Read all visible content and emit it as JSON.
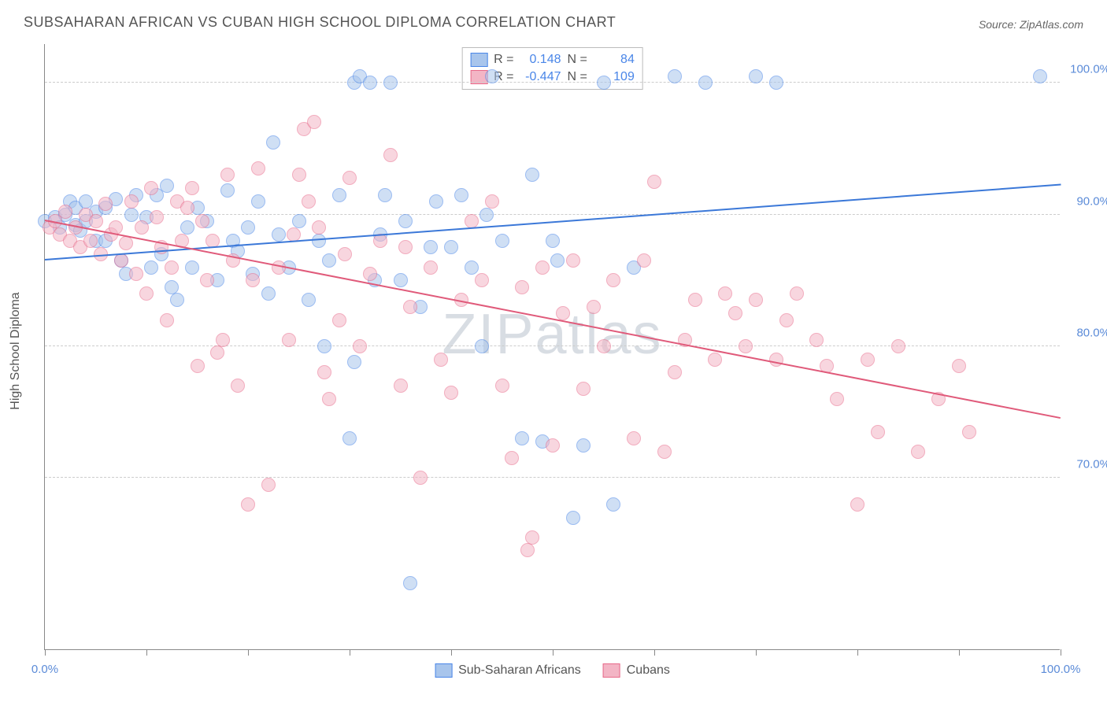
{
  "title": "SUBSAHARAN AFRICAN VS CUBAN HIGH SCHOOL DIPLOMA CORRELATION CHART",
  "source": "Source: ZipAtlas.com",
  "ylabel": "High School Diploma",
  "watermark": "ZIPatlas",
  "chart": {
    "type": "scatter",
    "xlim": [
      0,
      100
    ],
    "ylim": [
      57,
      103
    ],
    "yticks": [
      70,
      80,
      90,
      100
    ],
    "ytick_labels": [
      "70.0%",
      "80.0%",
      "90.0%",
      "100.0%"
    ],
    "xticks": [
      0,
      10,
      20,
      30,
      40,
      50,
      60,
      70,
      80,
      90,
      100
    ],
    "xtick_labels_shown": {
      "0": "0.0%",
      "100": "100.0%"
    },
    "grid_color": "#cccccc",
    "axis_color": "#888888",
    "background_color": "#ffffff",
    "marker_radius": 9,
    "marker_opacity": 0.55,
    "series": [
      {
        "name": "Sub-Saharan Africans",
        "stroke": "#4a86e8",
        "fill": "#a8c5ec",
        "R": "0.148",
        "N": "84",
        "trend": {
          "x1": 0,
          "y1": 86.5,
          "x2": 100,
          "y2": 92.2,
          "color": "#3b78d8",
          "width": 2
        },
        "points": [
          [
            0,
            89.5
          ],
          [
            1,
            89.8
          ],
          [
            1.5,
            89
          ],
          [
            2,
            90
          ],
          [
            2.5,
            91
          ],
          [
            3,
            89.2
          ],
          [
            3,
            90.5
          ],
          [
            3.5,
            88.8
          ],
          [
            4,
            89.5
          ],
          [
            4,
            91
          ],
          [
            5,
            88
          ],
          [
            5,
            90.2
          ],
          [
            6,
            90.5
          ],
          [
            6,
            88
          ],
          [
            7,
            91.2
          ],
          [
            7.5,
            86.5
          ],
          [
            8,
            85.5
          ],
          [
            8.5,
            90
          ],
          [
            9,
            91.5
          ],
          [
            10,
            89.8
          ],
          [
            10.5,
            86
          ],
          [
            11,
            91.5
          ],
          [
            11.5,
            87
          ],
          [
            12,
            92.2
          ],
          [
            12.5,
            84.5
          ],
          [
            13,
            83.5
          ],
          [
            14,
            89
          ],
          [
            14.5,
            86
          ],
          [
            15,
            90.5
          ],
          [
            16,
            89.5
          ],
          [
            17,
            85
          ],
          [
            18,
            91.8
          ],
          [
            18.5,
            88
          ],
          [
            19,
            87.2
          ],
          [
            20,
            89
          ],
          [
            20.5,
            85.5
          ],
          [
            21,
            91
          ],
          [
            22,
            84
          ],
          [
            22.5,
            95.5
          ],
          [
            23,
            88.5
          ],
          [
            24,
            86
          ],
          [
            25,
            89.5
          ],
          [
            26,
            83.5
          ],
          [
            27,
            88
          ],
          [
            27.5,
            80
          ],
          [
            28,
            86.5
          ],
          [
            29,
            91.5
          ],
          [
            30,
            73
          ],
          [
            30.5,
            100
          ],
          [
            30.5,
            78.8
          ],
          [
            31,
            100.5
          ],
          [
            32,
            100
          ],
          [
            32.5,
            85
          ],
          [
            33,
            88.5
          ],
          [
            33.5,
            91.5
          ],
          [
            34,
            100
          ],
          [
            35,
            85
          ],
          [
            35.5,
            89.5
          ],
          [
            36,
            62
          ],
          [
            37,
            83
          ],
          [
            38,
            87.5
          ],
          [
            38.5,
            91
          ],
          [
            40,
            87.5
          ],
          [
            41,
            91.5
          ],
          [
            42,
            86
          ],
          [
            43,
            80
          ],
          [
            43.5,
            90
          ],
          [
            44,
            100.5
          ],
          [
            45,
            88
          ],
          [
            47,
            73
          ],
          [
            48,
            93
          ],
          [
            49,
            72.8
          ],
          [
            50,
            88
          ],
          [
            50.5,
            86.5
          ],
          [
            52,
            67
          ],
          [
            53,
            72.5
          ],
          [
            55,
            100
          ],
          [
            56,
            68
          ],
          [
            58,
            86
          ],
          [
            62,
            100.5
          ],
          [
            65,
            100
          ],
          [
            70,
            100.5
          ],
          [
            72,
            100
          ],
          [
            98,
            100.5
          ]
        ]
      },
      {
        "name": "Cubans",
        "stroke": "#e86a8a",
        "fill": "#f3b5c5",
        "R": "-0.447",
        "N": "109",
        "trend": {
          "x1": 0,
          "y1": 89.5,
          "x2": 100,
          "y2": 74.5,
          "color": "#e05a7a",
          "width": 2
        },
        "points": [
          [
            0.5,
            89
          ],
          [
            1,
            89.5
          ],
          [
            1.5,
            88.5
          ],
          [
            2,
            90.2
          ],
          [
            2.5,
            88
          ],
          [
            3,
            89
          ],
          [
            3.5,
            87.5
          ],
          [
            4,
            90
          ],
          [
            4.5,
            88
          ],
          [
            5,
            89.5
          ],
          [
            5.5,
            87
          ],
          [
            6,
            90.8
          ],
          [
            6.5,
            88.5
          ],
          [
            7,
            89
          ],
          [
            7.5,
            86.5
          ],
          [
            8,
            87.8
          ],
          [
            8.5,
            91
          ],
          [
            9,
            85.5
          ],
          [
            9.5,
            89
          ],
          [
            10,
            84
          ],
          [
            10.5,
            92
          ],
          [
            11,
            89.8
          ],
          [
            11.5,
            87.5
          ],
          [
            12,
            82
          ],
          [
            12.5,
            86
          ],
          [
            13,
            91
          ],
          [
            13.5,
            88
          ],
          [
            14,
            90.5
          ],
          [
            14.5,
            92
          ],
          [
            15,
            78.5
          ],
          [
            15.5,
            89.5
          ],
          [
            16,
            85
          ],
          [
            16.5,
            88
          ],
          [
            17,
            79.5
          ],
          [
            17.5,
            80.5
          ],
          [
            18,
            93
          ],
          [
            18.5,
            86.5
          ],
          [
            19,
            77
          ],
          [
            20,
            68
          ],
          [
            20.5,
            85
          ],
          [
            21,
            93.5
          ],
          [
            22,
            69.5
          ],
          [
            23,
            86
          ],
          [
            24,
            80.5
          ],
          [
            24.5,
            88.5
          ],
          [
            25,
            93
          ],
          [
            25.5,
            96.5
          ],
          [
            26,
            91
          ],
          [
            26.5,
            97
          ],
          [
            27,
            89
          ],
          [
            27.5,
            78
          ],
          [
            28,
            76
          ],
          [
            29,
            82
          ],
          [
            29.5,
            87
          ],
          [
            30,
            92.8
          ],
          [
            31,
            80
          ],
          [
            32,
            85.5
          ],
          [
            33,
            88
          ],
          [
            34,
            94.5
          ],
          [
            35,
            77
          ],
          [
            35.5,
            87.5
          ],
          [
            36,
            83
          ],
          [
            37,
            70
          ],
          [
            38,
            86
          ],
          [
            39,
            79
          ],
          [
            40,
            76.5
          ],
          [
            41,
            83.5
          ],
          [
            42,
            89.5
          ],
          [
            43,
            85
          ],
          [
            44,
            91
          ],
          [
            45,
            77
          ],
          [
            46,
            71.5
          ],
          [
            47,
            84.5
          ],
          [
            47.5,
            64.5
          ],
          [
            48,
            65.5
          ],
          [
            49,
            86
          ],
          [
            50,
            72.5
          ],
          [
            51,
            82.5
          ],
          [
            52,
            86.5
          ],
          [
            53,
            76.8
          ],
          [
            54,
            83
          ],
          [
            55,
            80
          ],
          [
            56,
            85
          ],
          [
            58,
            73
          ],
          [
            59,
            86.5
          ],
          [
            60,
            92.5
          ],
          [
            61,
            72
          ],
          [
            62,
            78
          ],
          [
            63,
            80.5
          ],
          [
            64,
            83.5
          ],
          [
            66,
            79
          ],
          [
            67,
            84
          ],
          [
            68,
            82.5
          ],
          [
            69,
            80
          ],
          [
            70,
            83.5
          ],
          [
            72,
            79
          ],
          [
            73,
            82
          ],
          [
            74,
            84
          ],
          [
            76,
            80.5
          ],
          [
            77,
            78.5
          ],
          [
            78,
            76
          ],
          [
            80,
            68
          ],
          [
            81,
            79
          ],
          [
            82,
            73.5
          ],
          [
            84,
            80
          ],
          [
            86,
            72
          ],
          [
            88,
            76
          ],
          [
            90,
            78.5
          ],
          [
            91,
            73.5
          ]
        ]
      }
    ]
  },
  "legend": {
    "series_a": "Sub-Saharan Africans",
    "series_b": "Cubans"
  },
  "stats_labels": {
    "R": "R =",
    "N": "N ="
  }
}
